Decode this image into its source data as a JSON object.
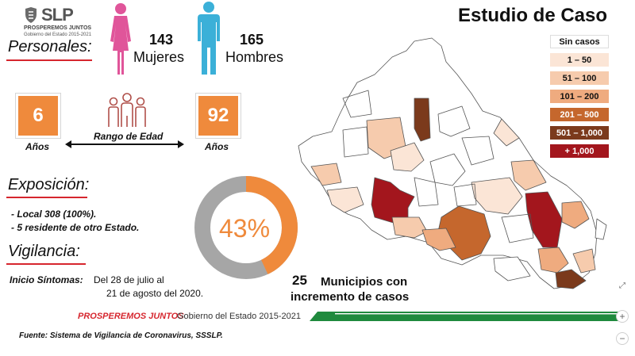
{
  "logo": {
    "name": "SLP",
    "subtitle_1": "PROSPEREMOS JUNTOS",
    "subtitle_2": "Gobierno del Estado 2015-2021"
  },
  "title": "Estudio de Caso",
  "personales": {
    "heading": "Personales:",
    "mujeres": {
      "count": "143",
      "label": "Mujeres",
      "color": "#e0559a"
    },
    "hombres": {
      "count": "165",
      "label": "Hombres",
      "color": "#3bb0d8"
    }
  },
  "edad": {
    "min": "6",
    "max": "92",
    "min_label": "Años",
    "max_label": "Años",
    "range_label": "Rango de Edad",
    "box_color": "#ef8a3c"
  },
  "exposicion": {
    "heading": "Exposición:",
    "items": [
      "- Local 308 (100%).",
      "- 5 residente de otro Estado."
    ]
  },
  "donut": {
    "label": "43%",
    "percent": 43,
    "fill_color": "#ef8a3c",
    "rest_color": "#a6a6a6"
  },
  "vigilancia": {
    "heading": "Vigilancia:",
    "inicio_label": "Inicio Síntomas:",
    "fecha_line1": "Del 28 de julio al",
    "fecha_line2": "21 de agosto del 2020."
  },
  "municipios": {
    "count": "25",
    "line1": "Municipios con",
    "line2": "incremento de casos"
  },
  "legend": [
    {
      "label": "Sin casos",
      "color": "#ffffff",
      "text_color": "#111111"
    },
    {
      "label": "1 – 50",
      "color": "#fbe5d6",
      "text_color": "#111111"
    },
    {
      "label": "51 – 100",
      "color": "#f6cbad",
      "text_color": "#111111"
    },
    {
      "label": "101 – 200",
      "color": "#efab7f",
      "text_color": "#111111"
    },
    {
      "label": "201 – 500",
      "color": "#c5672d",
      "text_color": "#ffffff"
    },
    {
      "label": "501 – 1,000",
      "color": "#7b3a1c",
      "text_color": "#ffffff"
    },
    {
      "label": "+ 1,000",
      "color": "#a3161d",
      "text_color": "#ffffff"
    }
  ],
  "footer": {
    "prosperemos": "PROSPEREMOS JUNTOS",
    "gobierno": "Gobierno del Estado 2015-2021",
    "fuente": "Fuente: Sistema de Vigilancia de Coronavirus, SSSLP."
  },
  "controls": {
    "expand": "⤢",
    "zoom_in": "+",
    "zoom_out": "−"
  }
}
